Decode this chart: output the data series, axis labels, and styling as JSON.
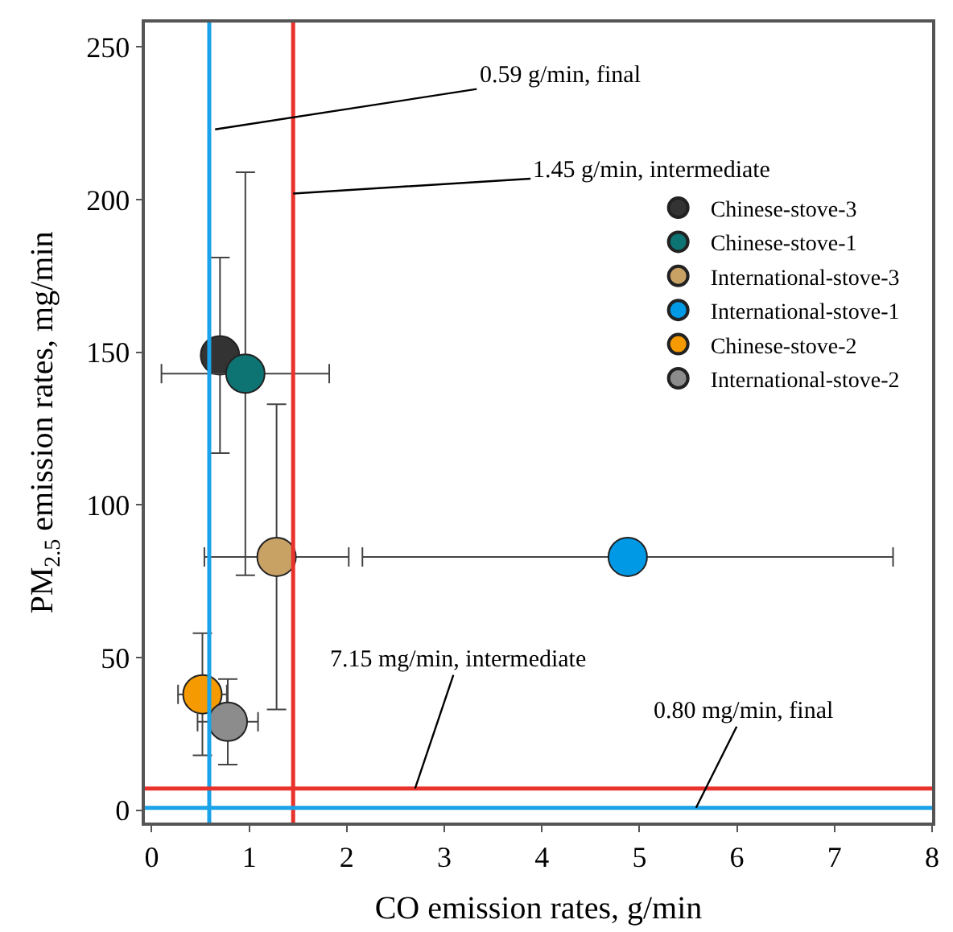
{
  "chart_data": {
    "type": "scatter",
    "xlabel": "CO emission rates, g/min",
    "ylabel": "PM$_{2.5}$ emission rates, mg/min",
    "xlim": [
      -0.07,
      8
    ],
    "ylim": [
      -4,
      258
    ],
    "xticks": [
      0,
      1,
      2,
      3,
      4,
      5,
      6,
      7,
      8
    ],
    "yticks": [
      0,
      50,
      100,
      150,
      200,
      250
    ],
    "legend": "top right",
    "series": [
      {
        "name": "Chinese-stove-3",
        "color": "#333333",
        "x": [
          0.7
        ],
        "values": [
          149
        ],
        "errors": [
          32
        ]
      },
      {
        "name": "Chinese-stove-1",
        "color": "#0d7373",
        "x": [
          0.96
        ],
        "values": [
          143
        ],
        "errors": [
          66
        ],
        "xerrors": [
          0.86
        ]
      },
      {
        "name": "International-stove-3",
        "color": "#c8a165",
        "x": [
          1.28
        ],
        "values": [
          83
        ],
        "errors": [
          50
        ],
        "xerrors": [
          0.74
        ]
      },
      {
        "name": "International-stove-1",
        "color": "#0099e6",
        "x": [
          4.88
        ],
        "values": [
          83
        ],
        "xerrors": [
          2.72
        ]
      },
      {
        "name": "Chinese-stove-2",
        "color": "#f59a00",
        "x": [
          0.52
        ],
        "values": [
          38
        ],
        "errors": [
          20
        ],
        "xerrors": [
          0.25
        ]
      },
      {
        "name": "International-stove-2",
        "color": "#8c8c8c",
        "x": [
          0.78
        ],
        "values": [
          29
        ],
        "errors": [
          14
        ],
        "xerrors": [
          0.31
        ]
      }
    ],
    "ref_lines": [
      {
        "axis": "x",
        "value": 0.59,
        "color": "#1aa3e8"
      },
      {
        "axis": "x",
        "value": 1.45,
        "color": "#e8322b"
      },
      {
        "axis": "y",
        "value": 7.15,
        "color": "#e8322b"
      },
      {
        "axis": "y",
        "value": 0.8,
        "color": "#1aa3e8"
      }
    ],
    "annotations": [
      {
        "text": "0.59 g/min, final",
        "x": 0.65,
        "y": 223
      },
      {
        "text": "1.45 g/min, intermediate",
        "x": 1.45,
        "y": 202
      },
      {
        "text": "7.15 mg/min, intermediate",
        "x": 2.7,
        "y": 7.15
      },
      {
        "text": "0.80 mg/min, final",
        "x": 5.58,
        "y": 0.8
      }
    ]
  }
}
